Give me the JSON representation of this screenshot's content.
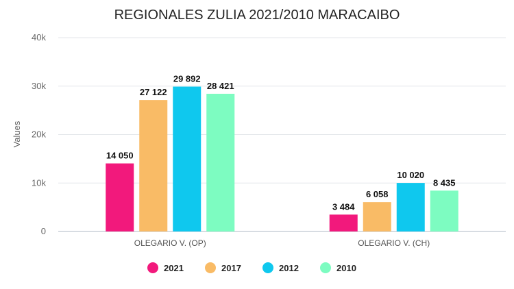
{
  "chart_data": {
    "type": "bar",
    "title": "REGIONALES ZULIA 2021/2010 MARACAIBO",
    "ylabel": "Values",
    "xlabel": "",
    "ylim": [
      0,
      40000
    ],
    "yticks": [
      0,
      10000,
      20000,
      30000,
      40000
    ],
    "ytick_labels": [
      "0",
      "10k",
      "20k",
      "30k",
      "40k"
    ],
    "grid": true,
    "legend_position": "bottom",
    "categories": [
      "OLEGARIO V. (OP)",
      "OLEGARIO V. (CH)"
    ],
    "series": [
      {
        "name": "2021",
        "color": "#f2197c",
        "values": [
          14050,
          3484
        ],
        "labels": [
          "14 050",
          "3 484"
        ]
      },
      {
        "name": "2017",
        "color": "#f9bb66",
        "values": [
          27122,
          6058
        ],
        "labels": [
          "27 122",
          "6 058"
        ]
      },
      {
        "name": "2012",
        "color": "#0fc8ee",
        "values": [
          29892,
          10020
        ],
        "labels": [
          "29 892",
          "10 020"
        ]
      },
      {
        "name": "2010",
        "color": "#7dfcc1",
        "values": [
          28421,
          8435
        ],
        "labels": [
          "28 421",
          "8 435"
        ]
      }
    ]
  }
}
